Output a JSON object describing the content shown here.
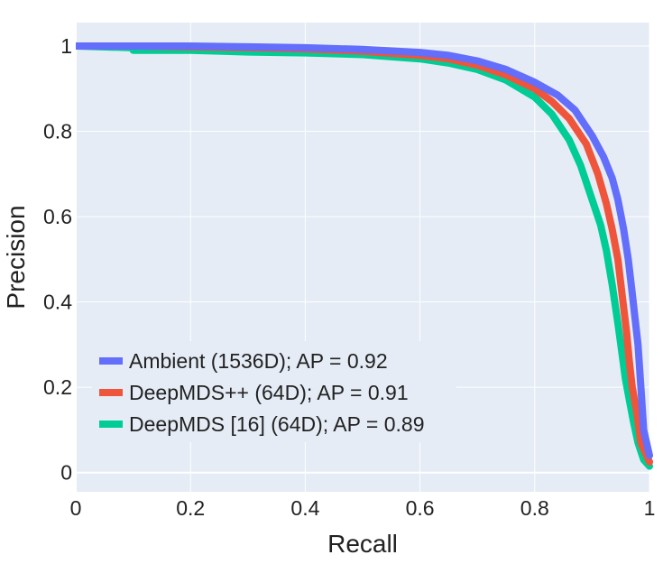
{
  "chart_data": {
    "type": "line",
    "xlabel": "Recall",
    "ylabel": "Precision",
    "xlim": [
      0,
      1
    ],
    "ylim": [
      -0.045,
      1.055
    ],
    "x_ticks": [
      0,
      0.2,
      0.4,
      0.6,
      0.8,
      1
    ],
    "x_tick_labels": [
      "0",
      "0.2",
      "0.4",
      "0.6",
      "0.8",
      "1"
    ],
    "y_ticks": [
      0,
      0.2,
      0.4,
      0.6,
      0.8,
      1
    ],
    "y_tick_labels": [
      "0",
      "0.2",
      "0.4",
      "0.6",
      "0.8",
      "1"
    ],
    "grid": true,
    "legend_position": "bottom-left",
    "background_color": "#e5ecf6",
    "series": [
      {
        "name": "Ambient (1536D); AP = 0.92",
        "color": "#636efa",
        "x": [
          0,
          0.1,
          0.2,
          0.3,
          0.4,
          0.5,
          0.6,
          0.65,
          0.7,
          0.75,
          0.8,
          0.84,
          0.87,
          0.9,
          0.92,
          0.935,
          0.945,
          0.955,
          0.963,
          0.97,
          0.975,
          0.98,
          0.985,
          0.99,
          1.0
        ],
        "y": [
          1.0,
          1.0,
          1.0,
          0.998,
          0.996,
          0.992,
          0.985,
          0.978,
          0.965,
          0.945,
          0.915,
          0.885,
          0.85,
          0.79,
          0.74,
          0.69,
          0.64,
          0.57,
          0.5,
          0.42,
          0.36,
          0.3,
          0.2,
          0.1,
          0.04
        ]
      },
      {
        "name": "DeepMDS++ (64D); AP = 0.91",
        "color": "#ef553b",
        "x": [
          0,
          0.1,
          0.2,
          0.3,
          0.4,
          0.5,
          0.6,
          0.65,
          0.7,
          0.75,
          0.8,
          0.83,
          0.86,
          0.89,
          0.91,
          0.925,
          0.935,
          0.945,
          0.952,
          0.96,
          0.965,
          0.97,
          0.978,
          0.985,
          1.0
        ],
        "y": [
          1.0,
          1.0,
          0.998,
          0.996,
          0.993,
          0.988,
          0.978,
          0.97,
          0.955,
          0.932,
          0.9,
          0.87,
          0.83,
          0.77,
          0.7,
          0.63,
          0.57,
          0.5,
          0.42,
          0.33,
          0.26,
          0.2,
          0.14,
          0.07,
          0.025
        ]
      },
      {
        "name": "DeepMDS [16] (64D); AP = 0.89",
        "color": "#00cc96",
        "x": [
          0,
          0.1,
          0.1,
          0.2,
          0.3,
          0.4,
          0.5,
          0.6,
          0.65,
          0.7,
          0.75,
          0.8,
          0.83,
          0.86,
          0.88,
          0.9,
          0.915,
          0.925,
          0.935,
          0.945,
          0.952,
          0.958,
          0.965,
          0.972,
          0.98,
          0.99,
          1.0
        ],
        "y": [
          1.0,
          0.996,
          0.99,
          0.99,
          0.986,
          0.984,
          0.98,
          0.97,
          0.96,
          0.945,
          0.92,
          0.88,
          0.84,
          0.78,
          0.72,
          0.64,
          0.58,
          0.52,
          0.44,
          0.35,
          0.28,
          0.22,
          0.17,
          0.12,
          0.07,
          0.03,
          0.015
        ]
      }
    ]
  }
}
